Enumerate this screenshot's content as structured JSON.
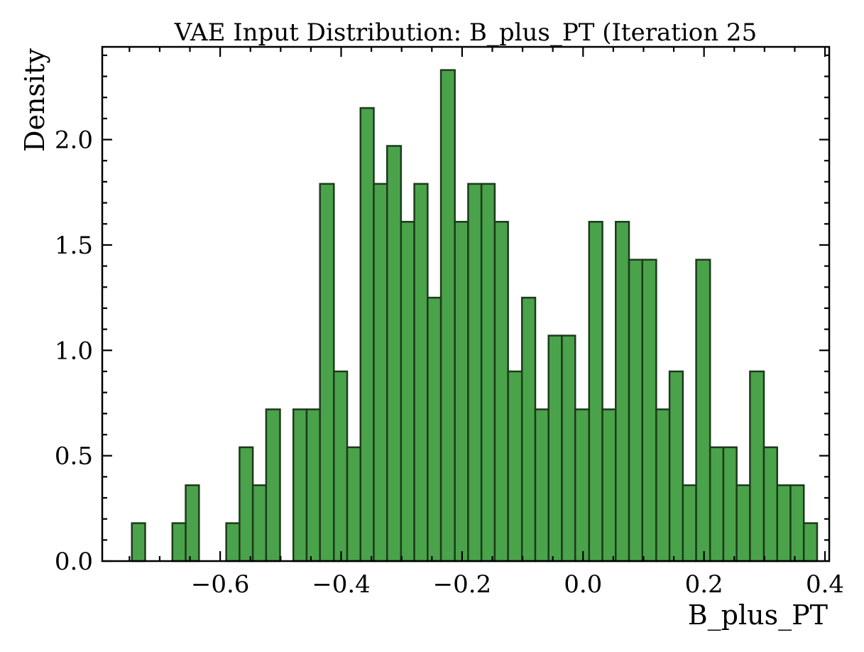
{
  "chart_data": {
    "type": "bar",
    "title": "VAE Input Distribution: B_plus_PT (Iteration 25",
    "xlabel": "B_plus_PT",
    "ylabel": "Density",
    "xlim": [
      -0.795,
      0.407
    ],
    "ylim": [
      0,
      2.44
    ],
    "bar_color": "#4aa34a",
    "edge_color": "#1d3a1d",
    "x_ticks": [
      {
        "value": -0.6,
        "label": "−0.6"
      },
      {
        "value": -0.4,
        "label": "−0.4"
      },
      {
        "value": -0.2,
        "label": "−0.2"
      },
      {
        "value": 0.0,
        "label": "0.0"
      },
      {
        "value": 0.2,
        "label": "0.2"
      },
      {
        "value": 0.4,
        "label": "0.4"
      }
    ],
    "y_ticks": [
      {
        "value": 0.0,
        "label": "0.0"
      },
      {
        "value": 0.5,
        "label": "0.5"
      },
      {
        "value": 1.0,
        "label": "1.0"
      },
      {
        "value": 1.5,
        "label": "1.5"
      },
      {
        "value": 2.0,
        "label": "2.0"
      }
    ],
    "bins": [
      {
        "x0": -0.746,
        "x1": -0.724,
        "value": 0.18
      },
      {
        "x0": -0.724,
        "x1": -0.701,
        "value": 0.0
      },
      {
        "x0": -0.701,
        "x1": -0.679,
        "value": 0.0
      },
      {
        "x0": -0.679,
        "x1": -0.657,
        "value": 0.18
      },
      {
        "x0": -0.657,
        "x1": -0.635,
        "value": 0.36
      },
      {
        "x0": -0.635,
        "x1": -0.612,
        "value": 0.0
      },
      {
        "x0": -0.612,
        "x1": -0.59,
        "value": 0.0
      },
      {
        "x0": -0.59,
        "x1": -0.568,
        "value": 0.18
      },
      {
        "x0": -0.568,
        "x1": -0.546,
        "value": 0.54
      },
      {
        "x0": -0.546,
        "x1": -0.524,
        "value": 0.36
      },
      {
        "x0": -0.524,
        "x1": -0.501,
        "value": 0.72
      },
      {
        "x0": -0.501,
        "x1": -0.479,
        "value": 0.0
      },
      {
        "x0": -0.479,
        "x1": -0.457,
        "value": 0.72
      },
      {
        "x0": -0.457,
        "x1": -0.435,
        "value": 0.72
      },
      {
        "x0": -0.435,
        "x1": -0.412,
        "value": 1.79
      },
      {
        "x0": -0.412,
        "x1": -0.39,
        "value": 0.9
      },
      {
        "x0": -0.39,
        "x1": -0.368,
        "value": 0.54
      },
      {
        "x0": -0.368,
        "x1": -0.346,
        "value": 2.15
      },
      {
        "x0": -0.346,
        "x1": -0.324,
        "value": 1.79
      },
      {
        "x0": -0.324,
        "x1": -0.301,
        "value": 1.97
      },
      {
        "x0": -0.301,
        "x1": -0.279,
        "value": 1.61
      },
      {
        "x0": -0.279,
        "x1": -0.257,
        "value": 1.79
      },
      {
        "x0": -0.257,
        "x1": -0.235,
        "value": 1.25
      },
      {
        "x0": -0.235,
        "x1": -0.212,
        "value": 2.33
      },
      {
        "x0": -0.212,
        "x1": -0.19,
        "value": 1.61
      },
      {
        "x0": -0.19,
        "x1": -0.168,
        "value": 1.79
      },
      {
        "x0": -0.168,
        "x1": -0.146,
        "value": 1.79
      },
      {
        "x0": -0.146,
        "x1": -0.124,
        "value": 1.61
      },
      {
        "x0": -0.124,
        "x1": -0.101,
        "value": 0.9
      },
      {
        "x0": -0.101,
        "x1": -0.079,
        "value": 1.25
      },
      {
        "x0": -0.079,
        "x1": -0.057,
        "value": 0.72
      },
      {
        "x0": -0.057,
        "x1": -0.035,
        "value": 1.07
      },
      {
        "x0": -0.035,
        "x1": -0.013,
        "value": 1.07
      },
      {
        "x0": -0.013,
        "x1": 0.01,
        "value": 0.72
      },
      {
        "x0": 0.01,
        "x1": 0.032,
        "value": 1.61
      },
      {
        "x0": 0.032,
        "x1": 0.054,
        "value": 0.72
      },
      {
        "x0": 0.054,
        "x1": 0.076,
        "value": 1.61
      },
      {
        "x0": 0.076,
        "x1": 0.098,
        "value": 1.43
      },
      {
        "x0": 0.098,
        "x1": 0.121,
        "value": 1.43
      },
      {
        "x0": 0.121,
        "x1": 0.143,
        "value": 0.72
      },
      {
        "x0": 0.143,
        "x1": 0.165,
        "value": 0.9
      },
      {
        "x0": 0.165,
        "x1": 0.187,
        "value": 0.36
      },
      {
        "x0": 0.187,
        "x1": 0.21,
        "value": 1.43
      },
      {
        "x0": 0.21,
        "x1": 0.232,
        "value": 0.54
      },
      {
        "x0": 0.232,
        "x1": 0.254,
        "value": 0.54
      },
      {
        "x0": 0.254,
        "x1": 0.276,
        "value": 0.36
      },
      {
        "x0": 0.276,
        "x1": 0.299,
        "value": 0.9
      },
      {
        "x0": 0.299,
        "x1": 0.321,
        "value": 0.54
      },
      {
        "x0": 0.321,
        "x1": 0.343,
        "value": 0.36
      },
      {
        "x0": 0.343,
        "x1": 0.365,
        "value": 0.36
      },
      {
        "x0": 0.365,
        "x1": 0.387,
        "value": 0.18
      }
    ]
  }
}
